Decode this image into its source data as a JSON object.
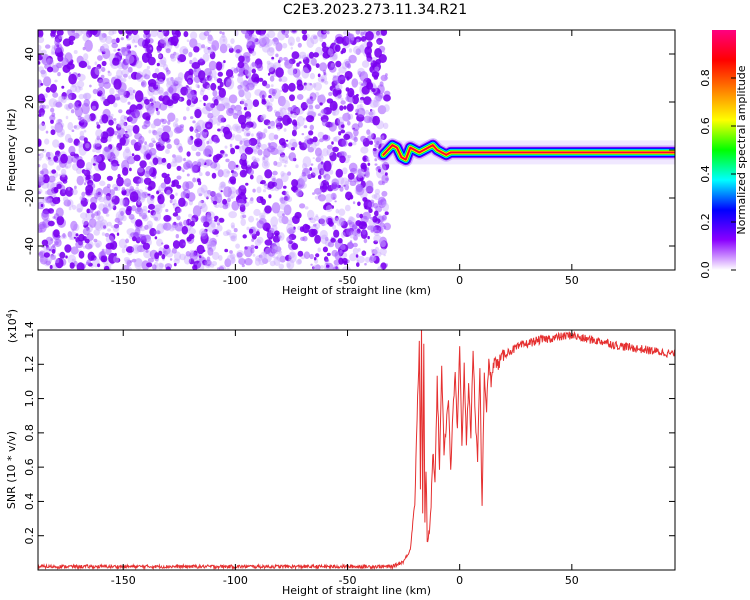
{
  "title": "C2E3.2023.273.11.34.R21",
  "chart_data": [
    {
      "type": "heatmap",
      "title": "C2E3.2023.273.11.34.R21",
      "xlabel": "Height of straight line (km)",
      "ylabel": "Frequency (Hz)",
      "xlim": [
        -188,
        96
      ],
      "ylim": [
        -50,
        50
      ],
      "xticks": [
        -150,
        -100,
        -50,
        0,
        50
      ],
      "yticks": [
        -40,
        -20,
        0,
        20,
        40
      ],
      "colorbar": {
        "label": "Normalized spectral amplitude",
        "range": [
          0,
          1
        ],
        "ticks": [
          "0.0",
          "0.2",
          "0.4",
          "0.6",
          "0.8"
        ],
        "colors": [
          "#ffffff",
          "#8a00ff",
          "#0000ff",
          "#00ffff",
          "#00ff00",
          "#ffff00",
          "#ff8000",
          "#ff0000",
          "#ff0080"
        ]
      },
      "signal_trace": {
        "x": [
          -34,
          -32,
          -30,
          -28,
          -26,
          -24,
          -22,
          -20,
          -18,
          -16,
          -14,
          -12,
          -10,
          -8,
          -6,
          -4,
          -2,
          0,
          5,
          10,
          20,
          40,
          60,
          80,
          96
        ],
        "y": [
          -2,
          0,
          2,
          1,
          -3,
          -4,
          1,
          0,
          -1,
          0,
          1,
          2,
          0,
          -1,
          -2,
          -1,
          -1,
          -1,
          -1,
          -1,
          -1,
          -1,
          -1,
          -1,
          -1
        ]
      }
    },
    {
      "type": "line",
      "xlabel": "Height of straight line (km)",
      "ylabel": "SNR (10 * v/v)",
      "ymultiplier": "(x10",
      "ymultiplier_exp": "4",
      "ymultiplier_close": ")",
      "xlim": [
        -188,
        96
      ],
      "ylim": [
        0,
        1.4
      ],
      "xticks": [
        -150,
        -100,
        -50,
        0,
        50
      ],
      "yticks": [
        "0.2",
        "0.4",
        "0.6",
        "0.8",
        "1.0",
        "1.2",
        "1.4"
      ],
      "series": [
        {
          "color": "#e53030",
          "x": [
            -188,
            -150,
            -100,
            -50,
            -30,
            -25,
            -22,
            -20,
            -19,
            -18,
            -17.5,
            -17,
            -16.5,
            -16,
            -15.5,
            -15,
            -14.5,
            -14,
            -13,
            -12,
            -11,
            -10,
            -9,
            -8,
            -7,
            -6,
            -5,
            -4,
            -3,
            -2,
            -1,
            0,
            1,
            2,
            3,
            4,
            5,
            6,
            7,
            8,
            9,
            10,
            11,
            12,
            13,
            14,
            15,
            17,
            20,
            23,
            26,
            30,
            35,
            40,
            45,
            50,
            55,
            60,
            65,
            70,
            75,
            80,
            85,
            90,
            96
          ],
          "y": [
            0.02,
            0.02,
            0.02,
            0.02,
            0.02,
            0.05,
            0.12,
            0.4,
            0.9,
            1.3,
            0.5,
            1.4,
            0.3,
            1.35,
            0.25,
            0.6,
            0.2,
            0.15,
            0.3,
            0.7,
            0.55,
            1.1,
            0.6,
            1.2,
            0.7,
            0.85,
            1.0,
            0.6,
            0.9,
            1.15,
            0.8,
            1.3,
            0.7,
            1.2,
            0.75,
            1.1,
            0.8,
            1.25,
            0.9,
            0.65,
            1.2,
            0.35,
            1.15,
            0.95,
            1.2,
            1.1,
            1.22,
            1.2,
            1.26,
            1.28,
            1.3,
            1.32,
            1.34,
            1.35,
            1.36,
            1.37,
            1.35,
            1.34,
            1.33,
            1.31,
            1.3,
            1.29,
            1.28,
            1.27,
            1.26
          ]
        }
      ]
    }
  ]
}
